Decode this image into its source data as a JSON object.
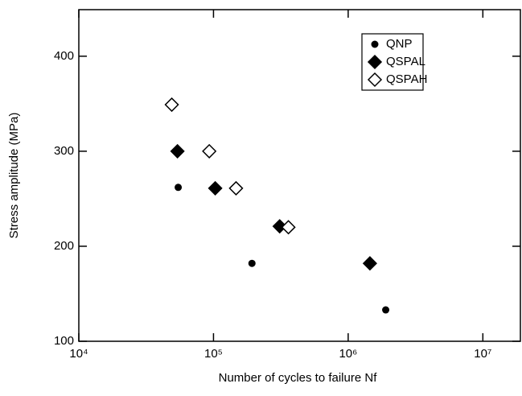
{
  "chart_data": {
    "type": "scatter",
    "xlabel": "Number of cycles to failure Nf",
    "ylabel": "Stress amplitude (MPa)",
    "xscale": "log",
    "xlim": [
      10000,
      19000000
    ],
    "xticks": [
      {
        "value": 10000,
        "label": "10⁴"
      },
      {
        "value": 100000,
        "label": "10⁵"
      },
      {
        "value": 1000000,
        "label": "10⁶"
      },
      {
        "value": 10000000,
        "label": "10⁷"
      }
    ],
    "ylim": [
      100,
      449
    ],
    "yticks": [
      100,
      200,
      300,
      400
    ],
    "legend": "upper right",
    "series": [
      {
        "name": "QNP",
        "marker": "dot",
        "color": "#000000",
        "x": [
          54700,
          193000,
          1900000
        ],
        "values": [
          262,
          182,
          133
        ]
      },
      {
        "name": "QSPAL",
        "marker": "filled-diamond",
        "color": "#000000",
        "x": [
          54000,
          103000,
          310000,
          1450000
        ],
        "values": [
          300,
          261,
          221,
          182
        ]
      },
      {
        "name": "QSPAH",
        "marker": "open-diamond",
        "color": "#000000",
        "x": [
          49000,
          93000,
          147000,
          360000
        ],
        "values": [
          349,
          300,
          261,
          220
        ]
      }
    ]
  }
}
